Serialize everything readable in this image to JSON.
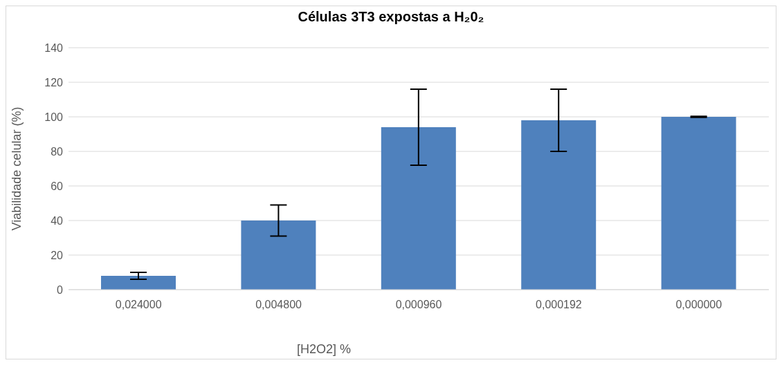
{
  "chart_data": {
    "type": "bar",
    "title": "Células 3T3 expostas a H₂0₂",
    "xlabel": "[H2O2] %",
    "ylabel": "Viabilidade celular (%)",
    "categories": [
      "0,024000",
      "0,004800",
      "0,000960",
      "0,000192",
      "0,000000"
    ],
    "values": [
      8,
      40,
      94,
      98,
      100
    ],
    "errors": [
      2,
      9,
      22,
      18,
      0.3
    ],
    "color": "#4f81bd",
    "ylim": [
      0,
      140
    ],
    "yticks": [
      0,
      20,
      40,
      60,
      80,
      100,
      120,
      140
    ],
    "grid": "y"
  }
}
